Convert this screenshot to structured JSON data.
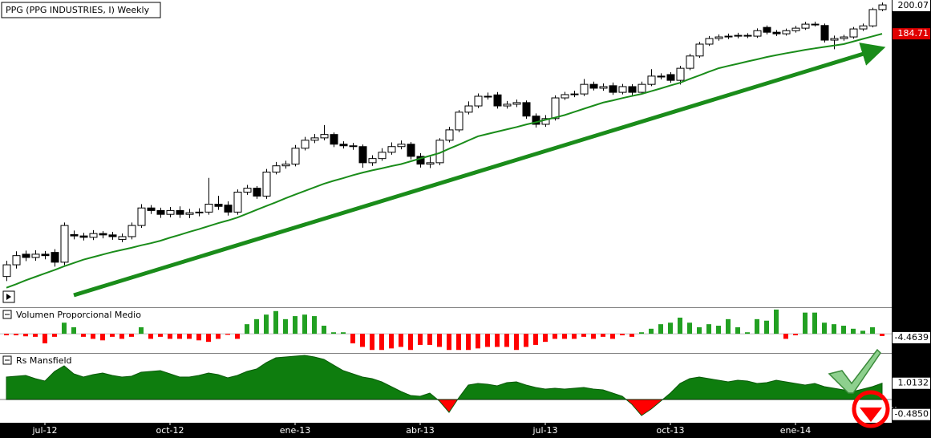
{
  "chart_data": [
    {
      "type": "candlestick",
      "title": "PPG (PPG INDUSTRIES, I) Weekly",
      "log": true,
      "ylim": [
        86.7,
        202.8
      ],
      "up_color": "#ffffff",
      "down_color": "#000000",
      "label_color": "#e00000",
      "open": [
        94.4,
        97.5,
        100.4,
        99.5,
        100.4,
        100.9,
        98.2,
        106.0,
        105.6,
        105.2,
        106.3,
        105.9,
        104.6,
        105.4,
        108.7,
        114.1,
        113.3,
        112.1,
        113.3,
        112.1,
        112.6,
        112.8,
        115.3,
        115.0,
        112.8,
        119.2,
        120.5,
        117.9,
        126.0,
        128.2,
        128.8,
        134.6,
        137.6,
        138.5,
        139.8,
        136.1,
        135.5,
        135.2,
        129.3,
        130.8,
        133.1,
        135.2,
        136.1,
        131.6,
        128.8,
        129.3,
        137.6,
        141.6,
        148.7,
        151.3,
        155.4,
        156.0,
        151.3,
        152.0,
        152.7,
        147.1,
        143.8,
        146.1,
        154.7,
        156.1,
        156.4,
        160.6,
        158.9,
        160.0,
        157.1,
        159.6,
        157.1,
        160.6,
        164.3,
        165.0,
        162.4,
        167.9,
        173.7,
        179.5,
        182.3,
        183.1,
        183.5,
        183.9,
        183.5,
        188.0,
        185.5,
        184.7,
        186.3,
        187.6,
        189.7,
        189.0,
        181.5,
        182.3,
        183.1,
        187.2,
        188.8,
        197.5
      ],
      "high": [
        98.6,
        101.2,
        101.4,
        101.5,
        101.3,
        101.8,
        109.6,
        107.2,
        106.5,
        107.3,
        107.0,
        106.8,
        106.3,
        109.6,
        115.3,
        115.0,
        114.2,
        114.4,
        114.6,
        113.8,
        114.0,
        124.0,
        118.0,
        116.2,
        120.1,
        121.6,
        121.2,
        127.1,
        129.6,
        130.0,
        135.8,
        138.9,
        140.0,
        143.5,
        140.6,
        137.2,
        136.6,
        136.0,
        132.0,
        134.6,
        136.8,
        137.5,
        136.9,
        132.8,
        131.5,
        138.4,
        142.8,
        149.6,
        153.2,
        156.6,
        157.0,
        157.2,
        153.4,
        154.0,
        153.6,
        148.2,
        147.5,
        155.8,
        157.3,
        157.8,
        163.0,
        161.8,
        161.0,
        161.4,
        160.8,
        160.7,
        161.8,
        167.5,
        165.6,
        166.1,
        169.0,
        174.8,
        180.6,
        183.6,
        184.4,
        184.8,
        185.2,
        185.0,
        187.5,
        189.0,
        186.6,
        187.4,
        188.8,
        190.9,
        191.0,
        190.0,
        183.8,
        184.2,
        188.2,
        190.0,
        198.5,
        201.4
      ],
      "low": [
        93.2,
        96.5,
        98.5,
        98.6,
        99.0,
        97.0,
        97.4,
        104.6,
        104.3,
        104.4,
        104.9,
        104.5,
        103.8,
        104.6,
        108.0,
        112.2,
        111.0,
        111.2,
        111.0,
        110.9,
        111.5,
        112.0,
        113.5,
        111.7,
        112.0,
        118.3,
        117.0,
        117.0,
        125.2,
        127.2,
        128.0,
        133.8,
        136.5,
        137.6,
        135.0,
        134.5,
        134.0,
        127.5,
        128.2,
        130.0,
        132.2,
        134.2,
        130.5,
        127.6,
        127.4,
        128.4,
        136.8,
        140.7,
        147.8,
        150.4,
        154.0,
        150.2,
        150.2,
        150.8,
        146.0,
        142.5,
        142.8,
        145.3,
        153.8,
        155.0,
        155.5,
        157.9,
        157.8,
        156.0,
        156.2,
        155.9,
        156.2,
        159.8,
        162.8,
        161.3,
        160.5,
        167.0,
        172.8,
        178.6,
        181.2,
        182.0,
        182.4,
        182.5,
        182.6,
        184.4,
        183.6,
        183.8,
        185.3,
        186.7,
        188.5,
        180.3,
        177.0,
        181.2,
        182.2,
        186.2,
        188.0,
        196.6
      ],
      "close": [
        97.5,
        100.0,
        99.5,
        100.4,
        100.0,
        98.2,
        108.7,
        105.6,
        105.2,
        106.3,
        105.9,
        105.4,
        105.4,
        108.7,
        114.1,
        113.3,
        112.1,
        113.3,
        112.1,
        112.6,
        112.8,
        115.3,
        114.6,
        112.8,
        119.2,
        120.5,
        117.9,
        126.0,
        128.2,
        128.8,
        134.6,
        137.6,
        138.5,
        139.8,
        136.1,
        135.5,
        135.2,
        129.3,
        130.8,
        133.1,
        135.2,
        136.1,
        131.6,
        128.8,
        129.3,
        137.6,
        141.6,
        148.7,
        151.3,
        155.4,
        155.4,
        151.3,
        152.0,
        152.7,
        147.1,
        143.8,
        146.1,
        154.7,
        156.1,
        156.4,
        160.6,
        158.9,
        159.6,
        157.1,
        159.6,
        157.1,
        160.6,
        164.3,
        163.9,
        162.4,
        167.9,
        173.7,
        179.5,
        182.3,
        183.1,
        183.5,
        183.9,
        183.5,
        186.3,
        185.5,
        184.7,
        186.3,
        187.6,
        189.7,
        189.7,
        181.5,
        182.3,
        183.1,
        187.2,
        188.8,
        197.5,
        200.07
      ],
      "ma": {
        "color": "#1a8c1a",
        "values": [
          91.5,
          92.4,
          93.4,
          94.3,
          95.2,
          96.1,
          97.1,
          98.0,
          98.9,
          99.6,
          100.3,
          101.0,
          101.6,
          102.2,
          102.9,
          103.5,
          104.2,
          105.1,
          105.9,
          106.8,
          107.6,
          108.5,
          109.4,
          110.2,
          111.1,
          112.3,
          113.5,
          114.7,
          115.9,
          117.2,
          118.4,
          119.6,
          120.8,
          122.0,
          123.0,
          123.9,
          124.9,
          125.8,
          126.6,
          127.3,
          128.1,
          128.8,
          129.8,
          130.8,
          131.8,
          132.8,
          134.4,
          135.9,
          137.5,
          139.1,
          140.0,
          140.9,
          141.8,
          142.7,
          143.7,
          144.6,
          145.6,
          146.5,
          147.5,
          148.8,
          150.1,
          151.4,
          152.7,
          153.6,
          154.6,
          155.5,
          156.4,
          157.6,
          158.8,
          160.1,
          161.3,
          163.0,
          164.6,
          166.3,
          167.9,
          169.0,
          170.0,
          171.1,
          172.1,
          173.2,
          174.1,
          175.0,
          175.8,
          176.7,
          177.4,
          178.1,
          178.8,
          179.5,
          180.8,
          182.1,
          183.4,
          184.71
        ]
      }
    },
    {
      "type": "bar",
      "title": "Volumen Proporcional Medio",
      "ylim": [
        -38,
        51
      ],
      "pos_color": "#22a022",
      "neg_color": "#ff0000",
      "values": [
        -3,
        -3,
        -5,
        -6,
        -19,
        -6,
        22,
        13,
        -6,
        -10,
        -13,
        -6,
        -10,
        -6,
        13,
        -10,
        -6,
        -10,
        -10,
        -10,
        -13,
        -16,
        -10,
        -2,
        -10,
        19,
        29,
        38,
        45,
        29,
        35,
        38,
        35,
        16,
        3,
        3,
        -19,
        -26,
        -32,
        -32,
        -29,
        -26,
        -32,
        -22,
        -22,
        -26,
        -32,
        -32,
        -32,
        -29,
        -26,
        -26,
        -26,
        -32,
        -26,
        -22,
        -16,
        -10,
        -10,
        -10,
        -6,
        -10,
        -6,
        -10,
        -3,
        -6,
        3,
        10,
        19,
        22,
        32,
        22,
        13,
        19,
        16,
        29,
        13,
        3,
        29,
        26,
        48,
        -10,
        -3,
        42,
        42,
        22,
        19,
        16,
        10,
        6,
        13,
        -4.4639
      ]
    },
    {
      "type": "area",
      "title": "Rs Mansfield",
      "ylim": [
        -1.45,
        2.85
      ],
      "pos_color": "#0e7d0e",
      "neg_color": "#ff0000",
      "yticks": [
        {
          "value": -0.485,
          "label": "-0.4850"
        }
      ],
      "categories": [
        null,
        null,
        null,
        null,
        "jul-12",
        null,
        null,
        null,
        null,
        null,
        null,
        null,
        null,
        null,
        null,
        null,
        null,
        "oct-12",
        null,
        null,
        null,
        null,
        null,
        null,
        null,
        null,
        null,
        null,
        null,
        null,
        "ene-13",
        null,
        null,
        null,
        null,
        null,
        null,
        null,
        null,
        null,
        null,
        null,
        null,
        "abr-13",
        null,
        null,
        null,
        null,
        null,
        null,
        null,
        null,
        null,
        null,
        null,
        null,
        "jul-13",
        null,
        null,
        null,
        null,
        null,
        null,
        null,
        null,
        null,
        null,
        null,
        null,
        "oct-13",
        null,
        null,
        null,
        null,
        null,
        null,
        null,
        null,
        null,
        null,
        null,
        null,
        "ene-14",
        null,
        null,
        null,
        null,
        null,
        null,
        null,
        null,
        null
      ],
      "values": [
        1.4,
        1.45,
        1.5,
        1.3,
        1.15,
        1.75,
        2.1,
        1.6,
        1.4,
        1.55,
        1.65,
        1.5,
        1.4,
        1.45,
        1.7,
        1.75,
        1.8,
        1.6,
        1.4,
        1.4,
        1.5,
        1.65,
        1.55,
        1.35,
        1.5,
        1.75,
        1.9,
        2.3,
        2.6,
        2.65,
        2.7,
        2.75,
        2.65,
        2.5,
        2.15,
        1.8,
        1.6,
        1.4,
        1.3,
        1.1,
        0.8,
        0.5,
        0.25,
        0.2,
        0.4,
        -0.1,
        -0.8,
        0.1,
        0.9,
        1.0,
        0.95,
        0.85,
        1.05,
        1.1,
        0.9,
        0.75,
        0.65,
        0.7,
        0.65,
        0.7,
        0.75,
        0.65,
        0.6,
        0.4,
        0.2,
        -0.3,
        -1.0,
        -0.6,
        -0.1,
        0.4,
        1.0,
        1.3,
        1.4,
        1.3,
        1.2,
        1.1,
        1.2,
        1.15,
        1.0,
        1.05,
        1.2,
        1.1,
        1.0,
        0.9,
        1.0,
        0.8,
        0.7,
        0.6,
        0.5,
        0.65,
        0.8,
        1.0132
      ]
    }
  ]
}
